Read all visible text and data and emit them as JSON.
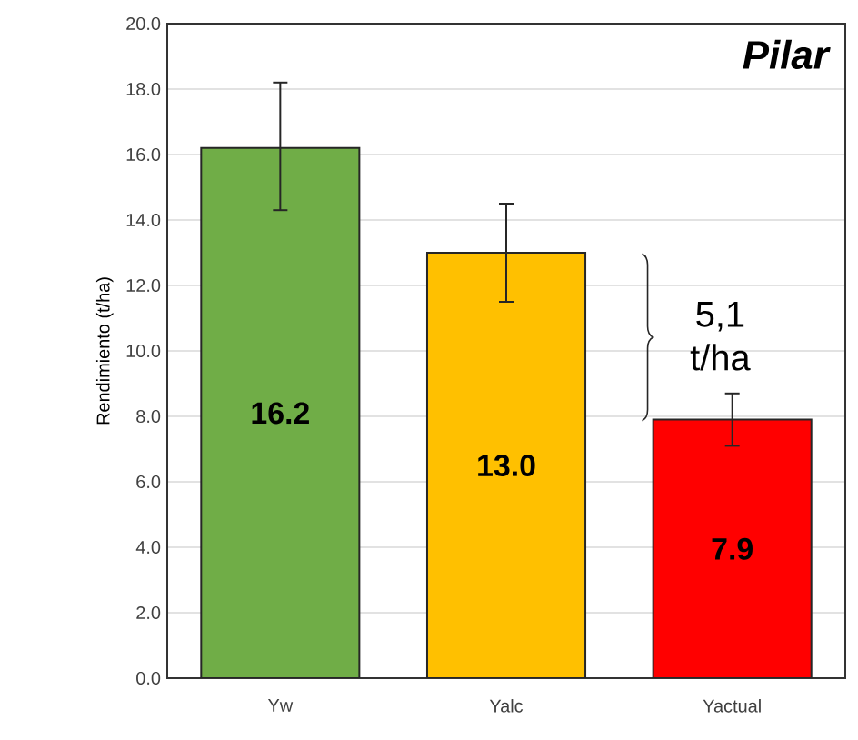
{
  "chart_data": {
    "type": "bar",
    "title": "Pilar",
    "ylabel": "Rendimiento (t/ha)",
    "categories": [
      "Yw",
      "Yalc",
      "Yactual"
    ],
    "values": [
      16.2,
      13.0,
      7.9
    ],
    "colors": [
      "#70ad47",
      "#ffc000",
      "#ff0000"
    ],
    "errors": [
      [
        14.3,
        18.2
      ],
      [
        11.5,
        14.5
      ],
      [
        7.1,
        8.7
      ]
    ],
    "value_labels": [
      "16.2",
      "13.0",
      "7.9"
    ],
    "annotations": [
      "5,1 t/ha"
    ],
    "ylim": [
      0,
      20
    ],
    "yticks": [
      {
        "value": 0,
        "label": "0.0"
      },
      {
        "value": 2,
        "label": "2.0"
      },
      {
        "value": 4,
        "label": "4.0"
      },
      {
        "value": 6,
        "label": "6.0"
      },
      {
        "value": 8,
        "label": "8.0"
      },
      {
        "value": 10,
        "label": "10.0"
      },
      {
        "value": 12,
        "label": "12.0"
      },
      {
        "value": 14,
        "label": "14.0"
      },
      {
        "value": 16,
        "label": "16.0"
      },
      {
        "value": 18,
        "label": "18.0"
      },
      {
        "value": 20,
        "label": "20.0"
      }
    ],
    "grid": "y"
  }
}
